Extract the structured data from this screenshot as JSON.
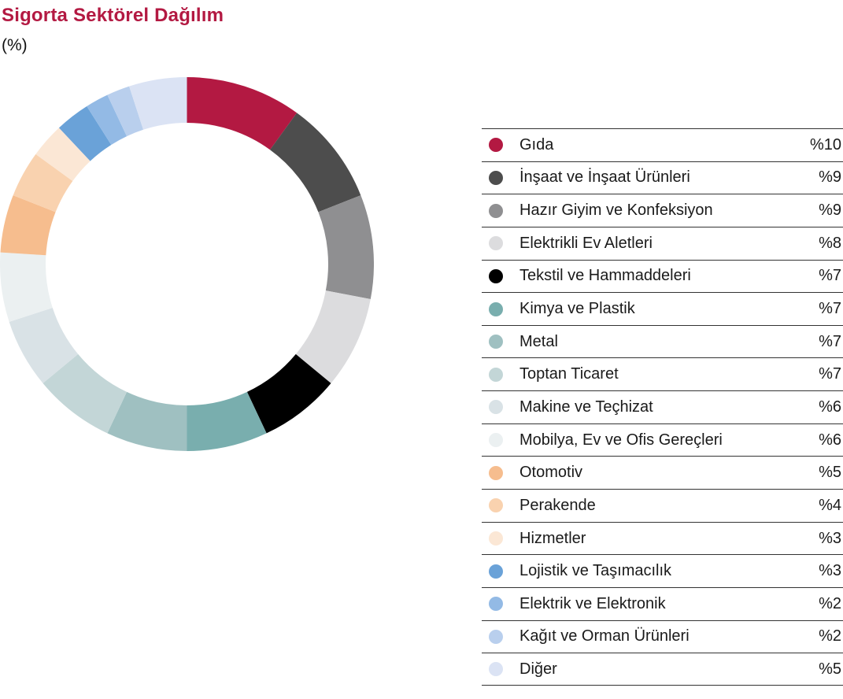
{
  "title": "Sigorta Sektörel Dağılım",
  "subtitle": "(%)",
  "colors": {
    "title": "#b31942",
    "text": "#1a1a1a",
    "separator": "#333333",
    "background": "#ffffff"
  },
  "chart_data": {
    "type": "pie",
    "variant": "donut",
    "title": "Sigorta Sektörel Dağılım",
    "unit": "%",
    "start_angle_deg": -90,
    "direction": "clockwise",
    "legend_position": "right",
    "categories": [
      "Gıda",
      "İnşaat ve İnşaat Ürünleri",
      "Hazır Giyim ve Konfeksiyon",
      "Elektrikli Ev Aletleri",
      "Tekstil ve Hammaddeleri",
      "Kimya ve Plastik",
      "Metal",
      "Toptan Ticaret",
      "Makine ve Teçhizat",
      "Mobilya, Ev ve Ofis Gereçleri",
      "Otomotiv",
      "Perakende",
      "Hizmetler",
      "Lojistik ve Taşımacılık",
      "Elektrik ve Elektronik",
      "Kağıt ve Orman Ürünleri",
      "Diğer"
    ],
    "values": [
      10,
      9,
      9,
      8,
      7,
      7,
      7,
      7,
      6,
      6,
      5,
      4,
      3,
      3,
      2,
      2,
      5
    ],
    "display_values": [
      "%10",
      "%9",
      "%9",
      "%8",
      "%7",
      "%7",
      "%7",
      "%7",
      "%6",
      "%6",
      "%5",
      "%4",
      "%3",
      "%3",
      "%2",
      "%2",
      "%5"
    ],
    "slice_colors": [
      "#b31942",
      "#4d4d4d",
      "#8f8f91",
      "#dcdcde",
      "#000000",
      "#79aeae",
      "#9fc0c1",
      "#c3d6d7",
      "#d9e2e6",
      "#ebf0f1",
      "#f6bd8e",
      "#f9d2af",
      "#fbe7d5",
      "#6aa2d8",
      "#93bae5",
      "#b9cfed",
      "#dbe3f4"
    ]
  }
}
